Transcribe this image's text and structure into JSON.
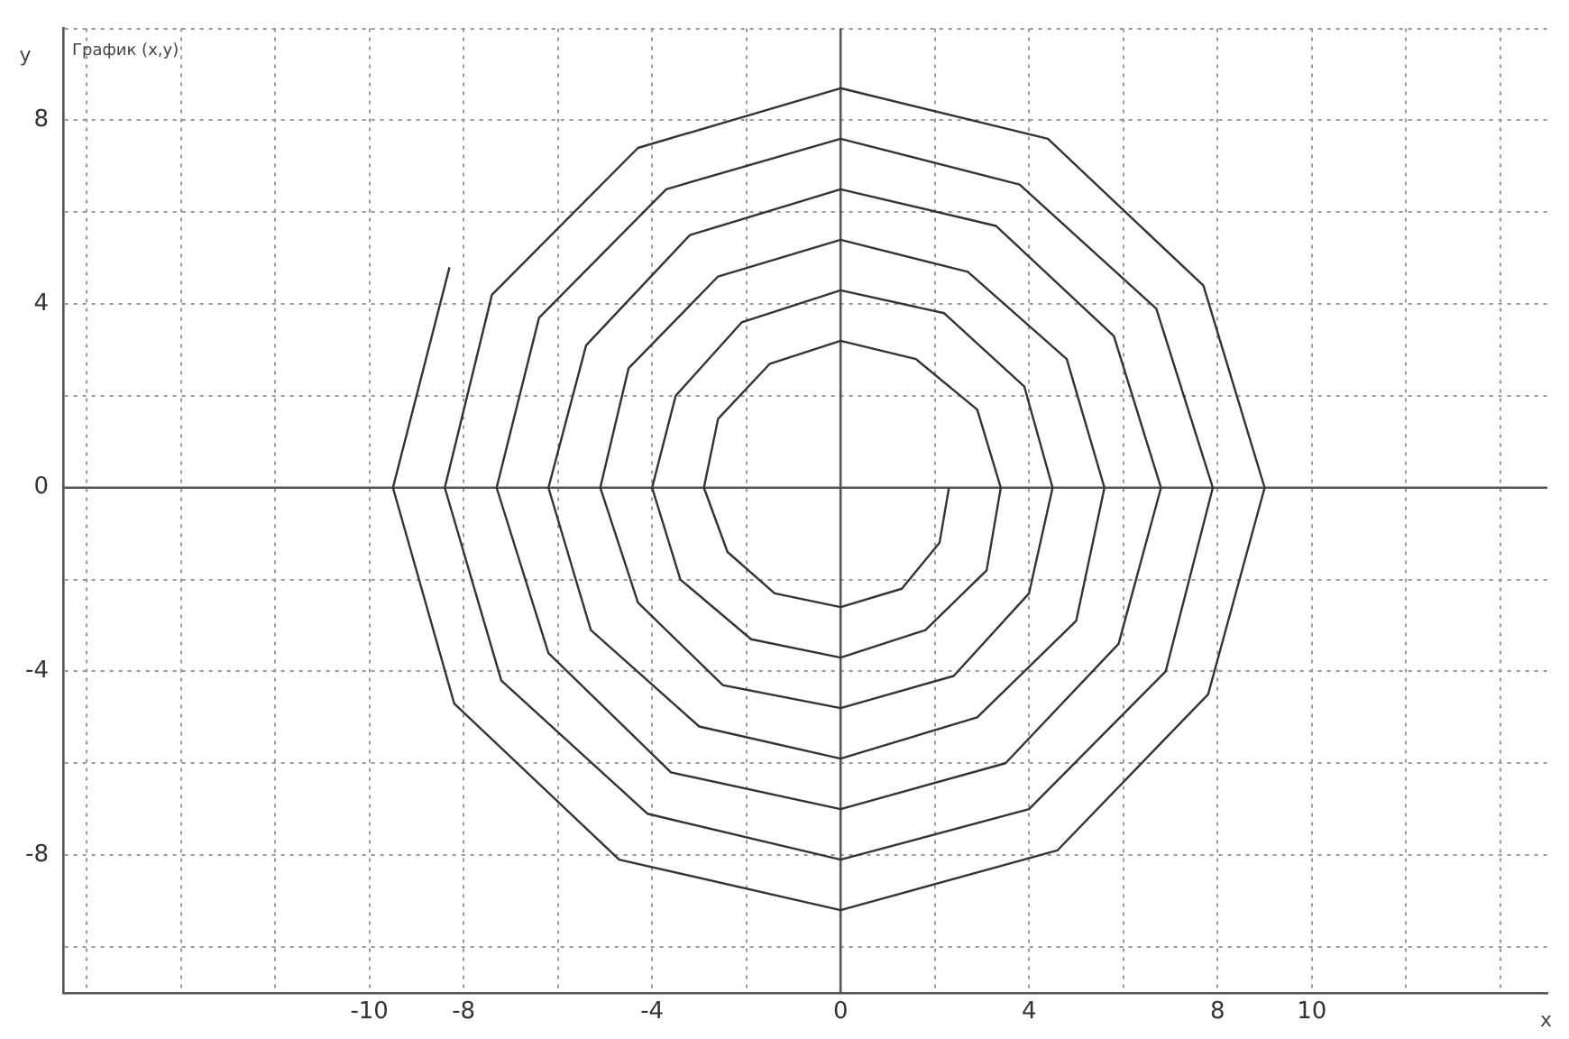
{
  "chart_data": {
    "type": "line",
    "title": "График (x,y)",
    "xlabel": "x",
    "ylabel": "y",
    "series": [
      {
        "color": "#333333",
        "x": [
          -8.3,
          -9.5,
          -8.2,
          -4.7,
          0,
          4.6,
          7.8,
          9.0,
          7.7,
          4.4,
          0,
          -4.3,
          -7.4,
          -8.4,
          -7.2,
          -4.1,
          0,
          4.0,
          6.9,
          7.9,
          6.7,
          3.8,
          0,
          -3.7,
          -6.4,
          -7.3,
          -6.2,
          -3.6,
          0,
          3.5,
          5.9,
          6.8,
          5.8,
          3.3,
          0,
          -3.2,
          -5.4,
          -6.2,
          -5.3,
          -3.0,
          0,
          2.9,
          5.0,
          5.6,
          4.8,
          2.7,
          0,
          -2.6,
          -4.5,
          -5.1,
          -4.3,
          -2.5,
          0,
          2.4,
          4.0,
          4.5,
          3.9,
          2.2,
          0,
          -2.1,
          -3.5,
          -4.0,
          -3.4,
          -1.9,
          0,
          1.8,
          3.1,
          3.4,
          2.9,
          1.6,
          0,
          -1.5,
          -2.6,
          -2.9,
          -2.4,
          -1.4,
          0,
          1.3,
          2.1,
          2.3
        ],
        "values": [
          4.8,
          0,
          -4.7,
          -8.1,
          -9.2,
          -7.9,
          -4.5,
          0,
          4.4,
          7.6,
          8.7,
          7.4,
          4.2,
          0,
          -4.2,
          -7.1,
          -8.1,
          -7.0,
          -4.0,
          0,
          3.9,
          6.6,
          7.6,
          6.5,
          3.7,
          0,
          -3.6,
          -6.2,
          -7.0,
          -6.0,
          -3.4,
          0,
          3.3,
          5.7,
          6.5,
          5.5,
          3.1,
          0,
          -3.1,
          -5.2,
          -5.9,
          -5.0,
          -2.9,
          0,
          2.8,
          4.7,
          5.4,
          4.6,
          2.6,
          0,
          -2.5,
          -4.3,
          -4.8,
          -4.1,
          -2.3,
          0,
          2.2,
          3.8,
          4.3,
          3.6,
          2.0,
          0,
          -2.0,
          -3.3,
          -3.7,
          -3.1,
          -1.8,
          0,
          1.7,
          2.8,
          3.2,
          2.7,
          1.5,
          0,
          -1.4,
          -2.3,
          -2.6,
          -2.2,
          -1.2,
          0
        ]
      }
    ],
    "xlim": [
      -16.5,
      15
    ],
    "xticks": [
      {
        "value": -16,
        "label": null
      },
      {
        "value": -14,
        "label": null
      },
      {
        "value": -12,
        "label": null
      },
      -10,
      -8,
      {
        "value": -6,
        "label": null
      },
      -4,
      {
        "value": -2,
        "label": null
      },
      0,
      {
        "value": 2,
        "label": null
      },
      4,
      {
        "value": 6,
        "label": null
      },
      8,
      10,
      {
        "value": 12,
        "label": null
      },
      {
        "value": 14,
        "label": null
      }
    ],
    "ylim": [
      -11,
      10
    ],
    "yticks": [
      {
        "value": -10,
        "label": null
      },
      -8,
      {
        "value": -6,
        "label": null
      },
      -4,
      {
        "value": -2,
        "label": null
      },
      0,
      {
        "value": 2,
        "label": null
      },
      4,
      {
        "value": 6,
        "label": null
      },
      8,
      {
        "value": 10,
        "label": null
      }
    ],
    "grid": true,
    "legend": false,
    "marker": "none",
    "line_style": "solid"
  }
}
